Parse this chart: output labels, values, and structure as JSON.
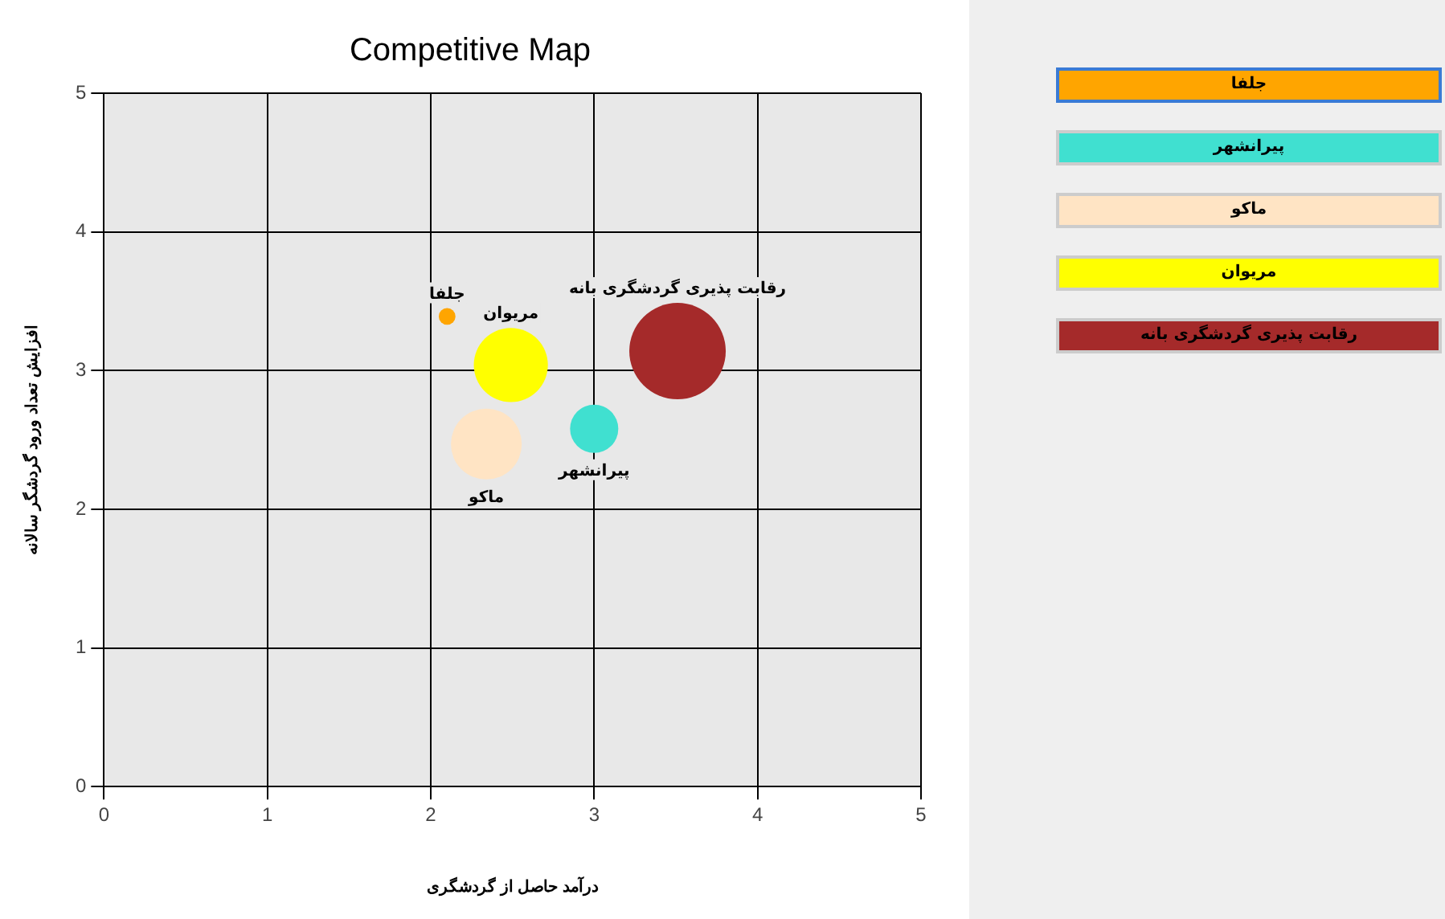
{
  "chart_data": {
    "type": "bubble",
    "title": "Competitive Map",
    "xlabel": "درآمد حاصل از گردشگری",
    "ylabel": "افزایش تعداد ورود گردشگر سالانه",
    "xlim": [
      0,
      5
    ],
    "ylim": [
      0,
      5
    ],
    "xticks": [
      0,
      1,
      2,
      3,
      4,
      5
    ],
    "yticks": [
      0,
      1,
      2,
      3,
      4,
      5
    ],
    "grid": true,
    "legend": "right",
    "series": [
      {
        "name": "جلفا",
        "color": "#ffa500",
        "x": [
          2.1
        ],
        "values": [
          3.39
        ],
        "sizes": [
          0.03
        ]
      },
      {
        "name": "پیرانشهر",
        "color": "#40e0d0",
        "x": [
          3.0
        ],
        "values": [
          2.58
        ],
        "sizes": [
          0.25
        ]
      },
      {
        "name": "ماکو",
        "color": "#ffe4c4",
        "x": [
          2.34
        ],
        "values": [
          2.47
        ],
        "sizes": [
          0.54
        ]
      },
      {
        "name": "مریوان",
        "color": "#ffff00",
        "x": [
          2.49
        ],
        "values": [
          3.04
        ],
        "sizes": [
          0.59
        ]
      },
      {
        "name": "رقابت پذیری گردشگری بانه",
        "color": "#a52a2a",
        "x": [
          3.51
        ],
        "values": [
          3.14
        ],
        "sizes": [
          1
        ]
      }
    ]
  }
}
